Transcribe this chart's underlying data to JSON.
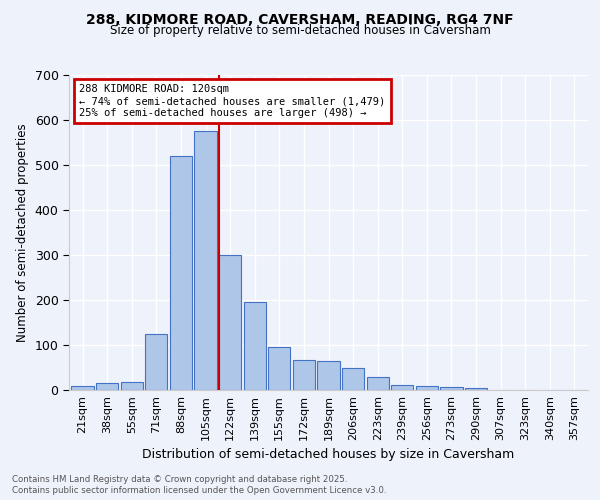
{
  "title_line1": "288, KIDMORE ROAD, CAVERSHAM, READING, RG4 7NF",
  "title_line2": "Size of property relative to semi-detached houses in Caversham",
  "xlabel": "Distribution of semi-detached houses by size in Caversham",
  "ylabel": "Number of semi-detached properties",
  "categories": [
    "21sqm",
    "38sqm",
    "55sqm",
    "71sqm",
    "88sqm",
    "105sqm",
    "122sqm",
    "139sqm",
    "155sqm",
    "172sqm",
    "189sqm",
    "206sqm",
    "223sqm",
    "239sqm",
    "256sqm",
    "273sqm",
    "290sqm",
    "307sqm",
    "323sqm",
    "340sqm",
    "357sqm"
  ],
  "values": [
    8,
    15,
    18,
    125,
    520,
    575,
    300,
    196,
    95,
    67,
    65,
    50,
    28,
    12,
    10,
    7,
    5,
    0,
    0,
    0,
    0
  ],
  "bar_color": "#aec6e8",
  "bar_edge_color": "#4472c4",
  "annotation_title": "288 KIDMORE ROAD: 120sqm",
  "annotation_line1": "← 74% of semi-detached houses are smaller (1,479)",
  "annotation_line2": "25% of semi-detached houses are larger (498) →",
  "vline_color": "#cc0000",
  "vline_x": 6,
  "ylim": [
    0,
    700
  ],
  "yticks": [
    0,
    100,
    200,
    300,
    400,
    500,
    600,
    700
  ],
  "footer_line1": "Contains HM Land Registry data © Crown copyright and database right 2025.",
  "footer_line2": "Contains public sector information licensed under the Open Government Licence v3.0.",
  "bg_color": "#eef2fb",
  "grid_color": "#ffffff",
  "box_color": "#cc0000"
}
